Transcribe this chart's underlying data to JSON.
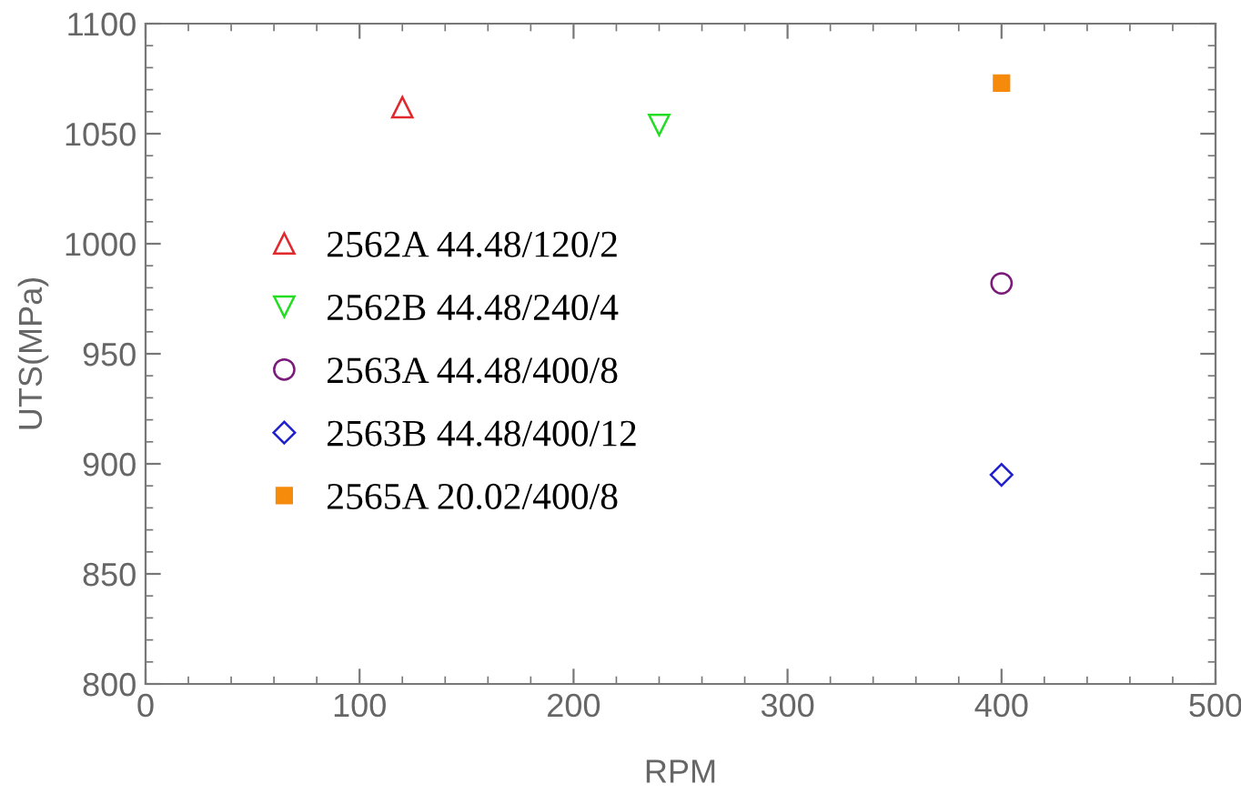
{
  "chart_data": {
    "type": "scatter",
    "xlabel": "RPM",
    "ylabel": "UTS(MPa)",
    "xlim": [
      0,
      500
    ],
    "xticks": [
      0,
      100,
      200,
      300,
      400,
      500
    ],
    "ylim": [
      800,
      1100
    ],
    "yticks": [
      800,
      850,
      900,
      950,
      1000,
      1050,
      1100
    ],
    "grid": false,
    "legend": "left",
    "series": [
      {
        "name": "2562A 44.48/120/2",
        "color": "#e0282d",
        "marker": "triangle",
        "x": [
          120
        ],
        "values": [
          1062
        ]
      },
      {
        "name": "2562B 44.48/240/4",
        "color": "#22dd22",
        "marker": "triangle_down",
        "x": [
          240
        ],
        "values": [
          1054
        ]
      },
      {
        "name": "2563A 44.48/400/8",
        "color": "#7a1a7a",
        "marker": "circle",
        "x": [
          400
        ],
        "values": [
          982
        ]
      },
      {
        "name": "2563B 44.48/400/12",
        "color": "#2020cc",
        "marker": "diamond",
        "x": [
          400
        ],
        "values": [
          895
        ]
      },
      {
        "name": "2565A 20.02/400/8",
        "color": "#f58a0b",
        "marker": "square",
        "x": [
          400
        ],
        "values": [
          1073
        ]
      }
    ]
  }
}
